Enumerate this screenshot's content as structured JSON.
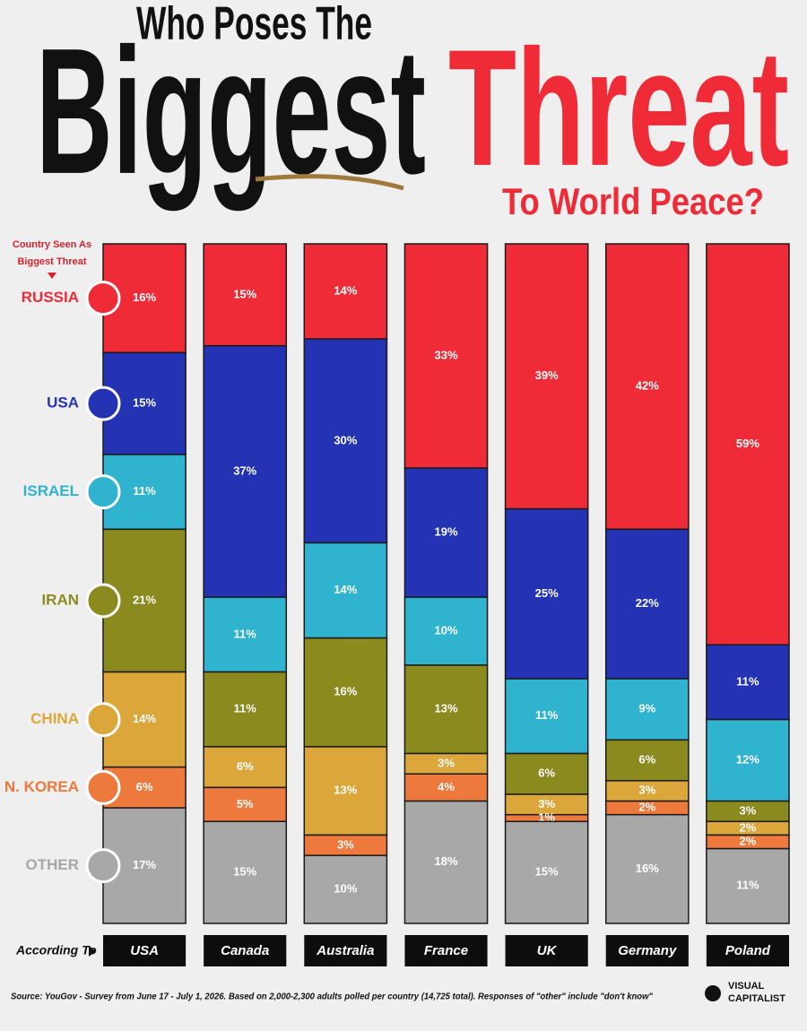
{
  "chart_data": {
    "type": "bar",
    "stacked": true,
    "title": [
      "Who Poses The",
      "Biggest",
      "Threat",
      "To World Peace?"
    ],
    "legend_title": [
      "Country Seen As",
      "Biggest Threat"
    ],
    "x_label": "According To",
    "categories": [
      "USA",
      "Canada",
      "Australia",
      "France",
      "UK",
      "Germany",
      "Poland"
    ],
    "ylim": [
      0,
      100
    ],
    "series": [
      {
        "name": "RUSSIA",
        "color": "#ee2b36",
        "values": [
          16,
          15,
          14,
          33,
          39,
          42,
          59
        ],
        "value_labels": [
          "16%",
          "15%",
          "14%",
          "33%",
          "39%",
          "42%",
          "59%"
        ]
      },
      {
        "name": "USA",
        "color": "#2333b3",
        "values": [
          15,
          37,
          30,
          19,
          25,
          22,
          11
        ],
        "value_labels": [
          "15%",
          "37%",
          "30%",
          "19%",
          "25%",
          "22%",
          "11%"
        ]
      },
      {
        "name": "ISRAEL",
        "color": "#2fb3cf",
        "values": [
          11,
          11,
          14,
          10,
          11,
          9,
          12
        ],
        "value_labels": [
          "11%",
          "11%",
          "14%",
          "10%",
          "11%",
          "9%",
          "12%"
        ]
      },
      {
        "name": "IRAN",
        "color": "#8a8a1f",
        "values": [
          21,
          11,
          16,
          13,
          6,
          6,
          3
        ],
        "value_labels": [
          "21%",
          "11%",
          "16%",
          "13%",
          "6%",
          "6%",
          "3%"
        ]
      },
      {
        "name": "CHINA",
        "color": "#dba73a",
        "values": [
          14,
          6,
          13,
          3,
          3,
          3,
          2
        ],
        "value_labels": [
          "14%",
          "6%",
          "13%",
          "3%",
          "3%",
          "3%",
          "2%"
        ]
      },
      {
        "name": "N. KOREA",
        "color": "#ee793c",
        "values": [
          6,
          5,
          3,
          4,
          1,
          2,
          2
        ],
        "value_labels": [
          "6%",
          "5%",
          "3%",
          "4%",
          "1%",
          "2%",
          "2%"
        ]
      },
      {
        "name": "OTHER",
        "color": "#a8a8a8",
        "values": [
          17,
          15,
          10,
          18,
          15,
          16,
          11
        ],
        "value_labels": [
          "17%",
          "15%",
          "10%",
          "18%",
          "15%",
          "16%",
          "11%"
        ]
      }
    ],
    "source": "Source: YouGov - Survey from June 17 - July 1, 2026. Based on 2,000-2,300 adults polled per country (14,725 total). Responses of \"other\" include \"don't know\"",
    "brand": [
      "VISUAL",
      "CAPITALIST"
    ]
  }
}
